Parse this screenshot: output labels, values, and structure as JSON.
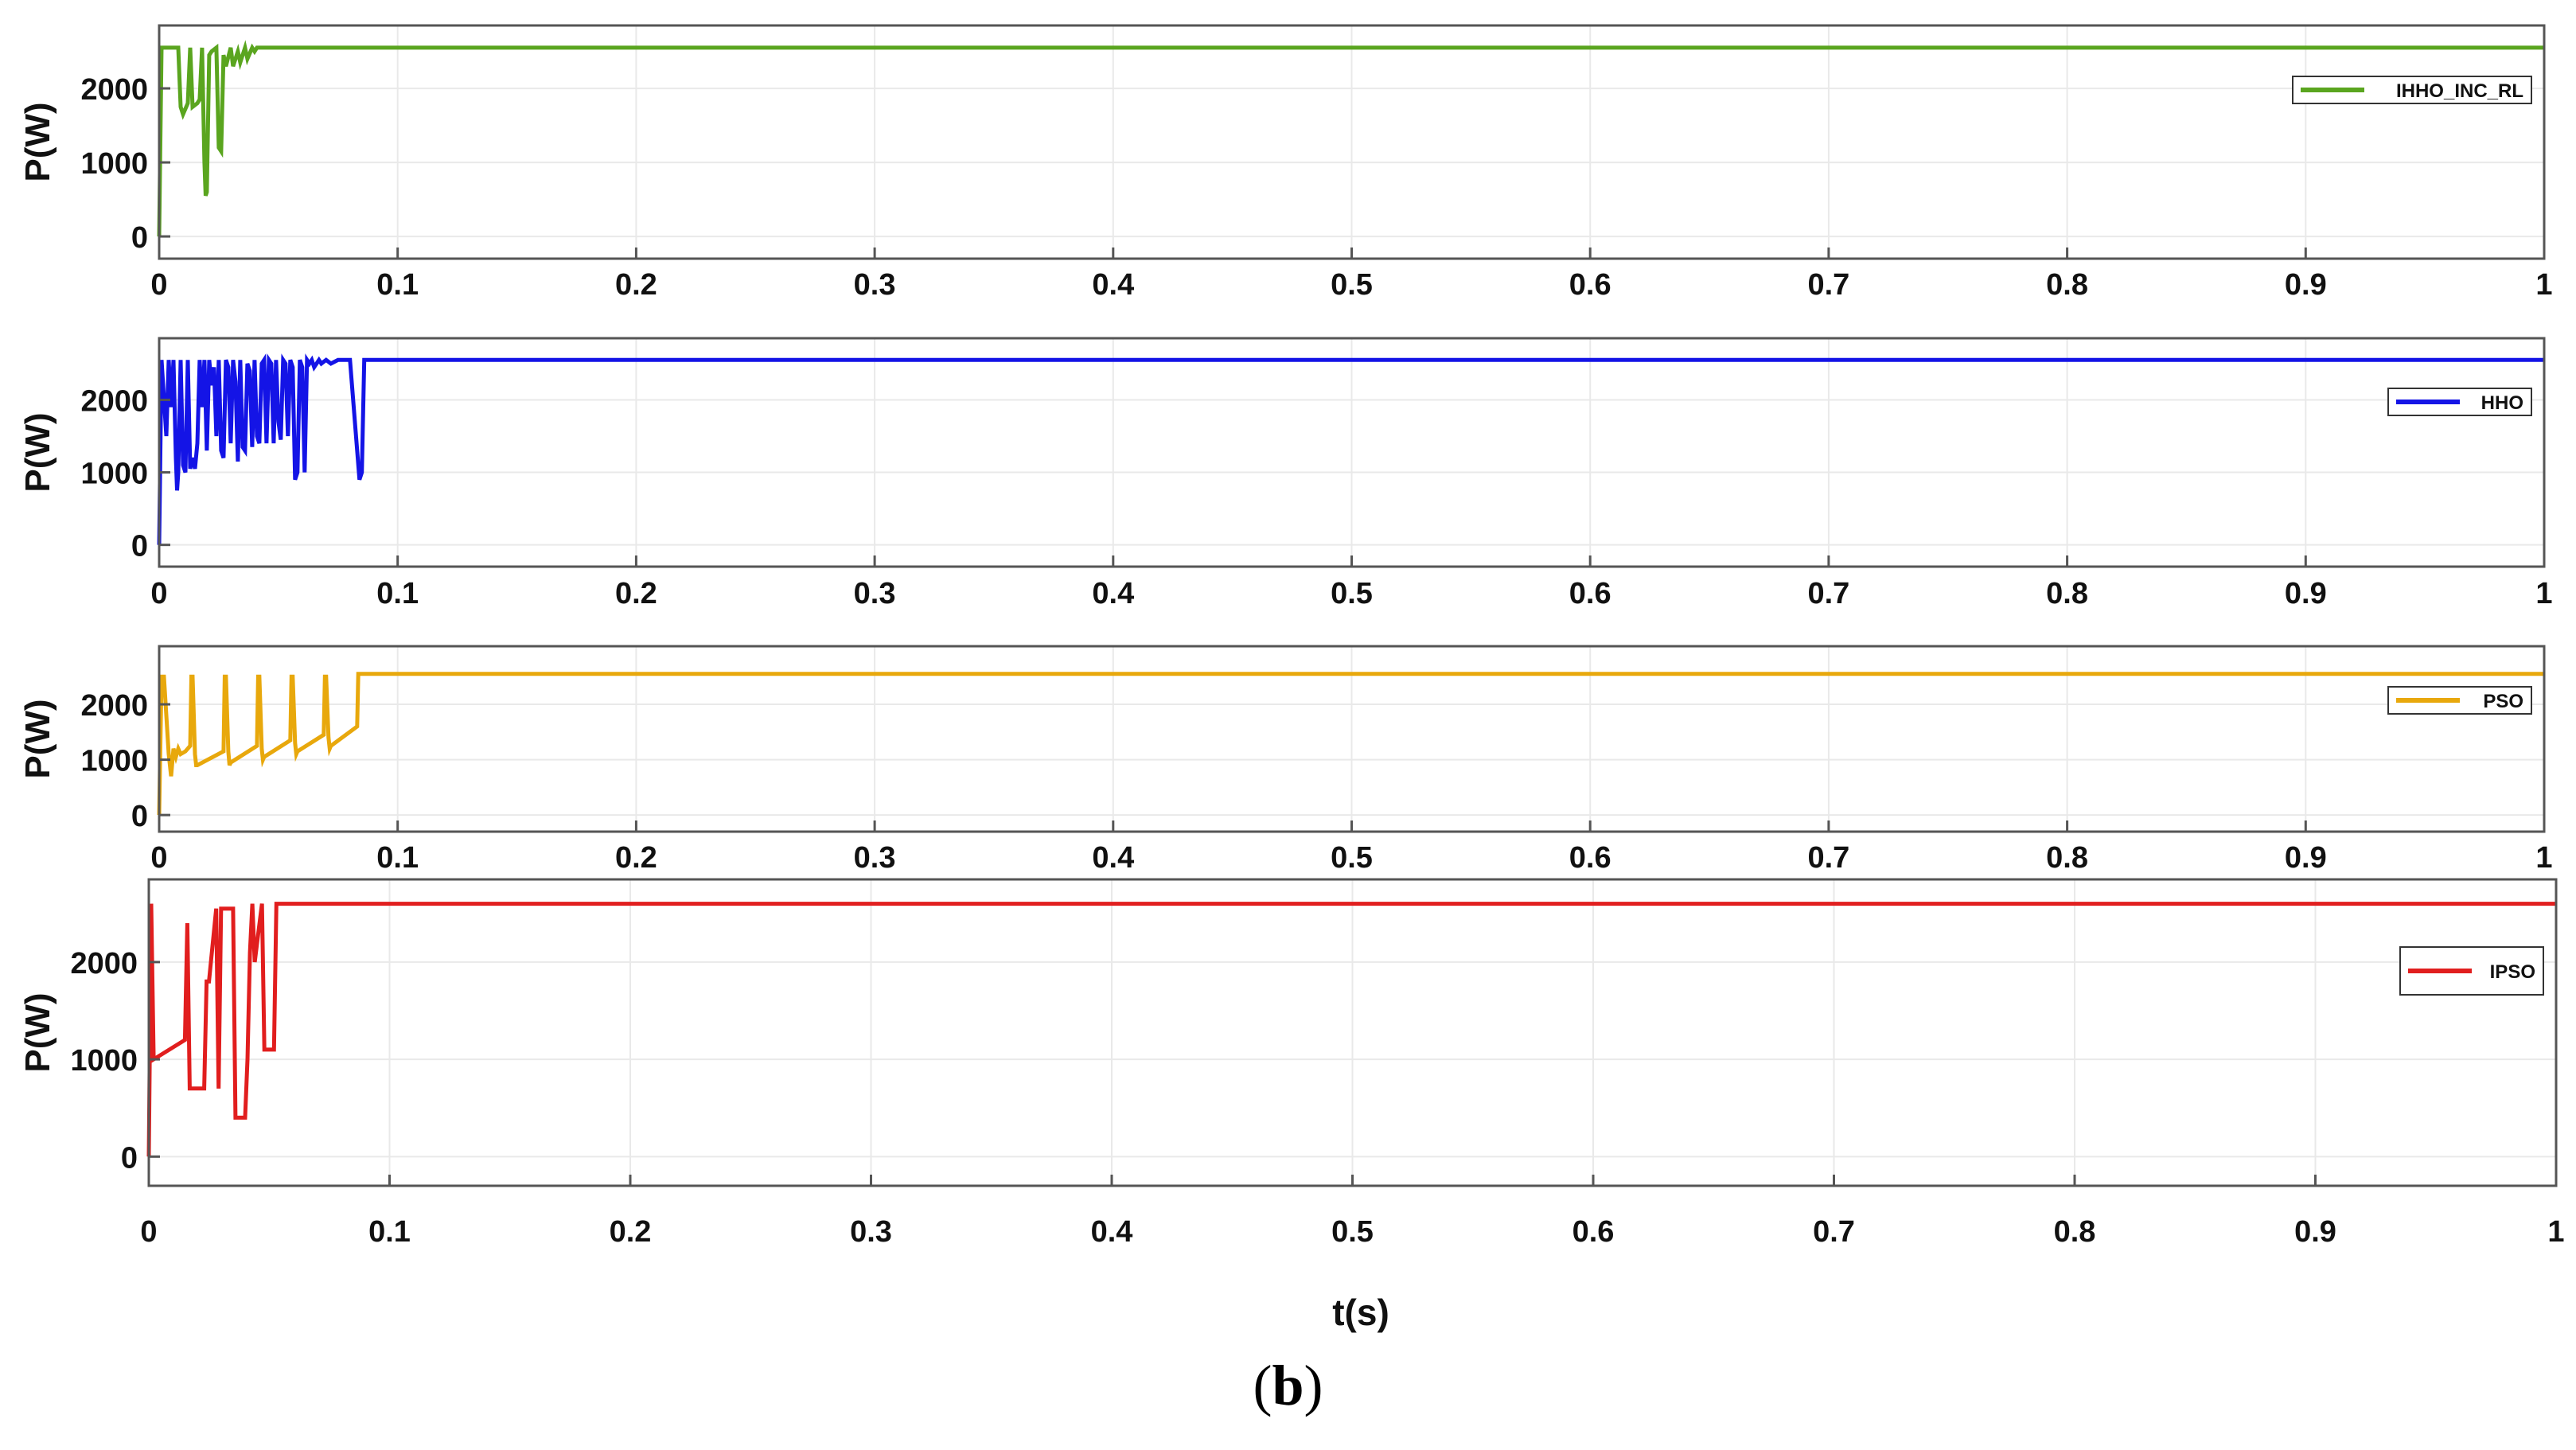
{
  "caption": {
    "open": "(",
    "letter": "b",
    "close": ")"
  },
  "shared_x_label": "t(s)",
  "colors": {
    "axes": "#555555",
    "grid": "#e9e9e9"
  },
  "chart_data": [
    {
      "type": "line",
      "ylabel": "P(W)",
      "xlim": [
        0,
        1
      ],
      "ylim": [
        -300,
        2850
      ],
      "x_ticks": [
        "0",
        "0.1",
        "0.2",
        "0.3",
        "0.4",
        "0.5",
        "0.6",
        "0.7",
        "0.8",
        "0.9",
        "1"
      ],
      "y_ticks": [
        "0",
        "1000",
        "2000"
      ],
      "legend": "top-right",
      "grid": true,
      "series": [
        {
          "name": "IHHO_INC_RL",
          "color": "#5aa51f",
          "x": [
            0,
            0.001,
            0.002,
            0.008,
            0.009,
            0.01,
            0.012,
            0.013,
            0.014,
            0.016,
            0.017,
            0.018,
            0.019,
            0.0195,
            0.02,
            0.021,
            0.022,
            0.024,
            0.025,
            0.026,
            0.027,
            0.028,
            0.03,
            0.031,
            0.033,
            0.034,
            0.036,
            0.037,
            0.039,
            0.04,
            0.041,
            0.045,
            1
          ],
          "y": [
            0,
            2550,
            2550,
            2550,
            1750,
            1650,
            1800,
            2550,
            1750,
            1800,
            1850,
            2550,
            1000,
            550,
            600,
            2450,
            2500,
            2550,
            1200,
            1150,
            2450,
            2300,
            2550,
            2300,
            2500,
            2350,
            2550,
            2400,
            2550,
            2500,
            2550,
            2550,
            2550
          ]
        }
      ]
    },
    {
      "type": "line",
      "ylabel": "P(W)",
      "xlim": [
        0,
        1
      ],
      "ylim": [
        -300,
        2850
      ],
      "x_ticks": [
        "0",
        "0.1",
        "0.2",
        "0.3",
        "0.4",
        "0.5",
        "0.6",
        "0.7",
        "0.8",
        "0.9",
        "1"
      ],
      "y_ticks": [
        "0",
        "1000",
        "2000"
      ],
      "legend": "top-right",
      "grid": true,
      "series": [
        {
          "name": "HHO",
          "color": "#1414e6",
          "x": [
            0,
            0.001,
            0.003,
            0.004,
            0.005,
            0.006,
            0.007,
            0.0075,
            0.008,
            0.009,
            0.01,
            0.011,
            0.012,
            0.013,
            0.014,
            0.015,
            0.016,
            0.017,
            0.018,
            0.019,
            0.02,
            0.021,
            0.022,
            0.023,
            0.024,
            0.025,
            0.026,
            0.027,
            0.028,
            0.029,
            0.03,
            0.031,
            0.032,
            0.033,
            0.034,
            0.035,
            0.036,
            0.037,
            0.038,
            0.039,
            0.04,
            0.041,
            0.042,
            0.043,
            0.044,
            0.045,
            0.046,
            0.047,
            0.048,
            0.049,
            0.05,
            0.051,
            0.052,
            0.053,
            0.054,
            0.055,
            0.056,
            0.057,
            0.058,
            0.059,
            0.06,
            0.061,
            0.062,
            0.063,
            0.064,
            0.065,
            0.066,
            0.067,
            0.068,
            0.07,
            0.072,
            0.075,
            0.08,
            0.084,
            0.085,
            0.086,
            0.087,
            0.088,
            1
          ],
          "y": [
            0,
            2550,
            1500,
            2550,
            1900,
            2550,
            1200,
            750,
            1000,
            2550,
            1100,
            1000,
            2550,
            1050,
            1200,
            1050,
            1400,
            2550,
            1900,
            2550,
            1300,
            2550,
            2200,
            2450,
            1500,
            2550,
            1300,
            1200,
            2550,
            2450,
            1400,
            2550,
            2250,
            1150,
            2550,
            1350,
            1300,
            2500,
            2400,
            1350,
            2550,
            1500,
            1400,
            2500,
            2550,
            1400,
            2550,
            2500,
            1400,
            2550,
            1700,
            1450,
            2550,
            2500,
            1500,
            2550,
            2450,
            900,
            1000,
            2550,
            2450,
            1000,
            2550,
            2500,
            2550,
            2450,
            2500,
            2550,
            2500,
            2550,
            2500,
            2550,
            2550,
            900,
            1000,
            2550,
            2550,
            2550,
            2550
          ]
        }
      ]
    },
    {
      "type": "line",
      "ylabel": "P(W)",
      "xlim": [
        0,
        1
      ],
      "ylim": [
        -300,
        3050
      ],
      "x_ticks": [
        "0",
        "0.1",
        "0.2",
        "0.3",
        "0.4",
        "0.5",
        "0.6",
        "0.7",
        "0.8",
        "0.9",
        "1"
      ],
      "y_ticks": [
        "0",
        "1000",
        "2000"
      ],
      "legend": "top-right",
      "grid": true,
      "series": [
        {
          "name": "PSO",
          "color": "#e8a80c",
          "x": [
            0,
            0.001,
            0.002,
            0.004,
            0.005,
            0.006,
            0.007,
            0.008,
            0.009,
            0.011,
            0.013,
            0.0135,
            0.014,
            0.015,
            0.0155,
            0.016,
            0.027,
            0.0275,
            0.028,
            0.029,
            0.0295,
            0.03,
            0.041,
            0.0415,
            0.042,
            0.043,
            0.0435,
            0.044,
            0.055,
            0.0555,
            0.056,
            0.057,
            0.0575,
            0.058,
            0.069,
            0.0695,
            0.07,
            0.071,
            0.0715,
            0.072,
            0.083,
            0.0835,
            0.084,
            0.085,
            1
          ],
          "y": [
            0,
            2500,
            2500,
            1100,
            700,
            1200,
            1050,
            1200,
            1100,
            1150,
            1250,
            2500,
            2500,
            1100,
            900,
            900,
            1150,
            2500,
            2500,
            1150,
            900,
            950,
            1250,
            2500,
            2500,
            1200,
            1000,
            1050,
            1350,
            2500,
            2500,
            1300,
            1100,
            1150,
            1450,
            2500,
            2500,
            1400,
            1200,
            1250,
            1600,
            2550,
            2550,
            2550,
            2550
          ]
        }
      ]
    },
    {
      "type": "line",
      "ylabel": "P(W)",
      "xlim": [
        0,
        1
      ],
      "ylim": [
        -300,
        2850
      ],
      "x_ticks": [
        "0",
        "0.1",
        "0.2",
        "0.3",
        "0.4",
        "0.5",
        "0.6",
        "0.7",
        "0.8",
        "0.9",
        "1"
      ],
      "y_ticks": [
        "0",
        "1000",
        "2000"
      ],
      "legend": "top-right",
      "grid": true,
      "series": [
        {
          "name": "IPSO",
          "color": "#e11e1e",
          "x": [
            0,
            0.001,
            0.002,
            0.015,
            0.016,
            0.017,
            0.023,
            0.024,
            0.025,
            0.028,
            0.029,
            0.03,
            0.035,
            0.036,
            0.037,
            0.04,
            0.041,
            0.042,
            0.043,
            0.044,
            0.045,
            0.047,
            0.048,
            0.049,
            0.05,
            0.052,
            0.053,
            0.054,
            0.055,
            1
          ],
          "y": [
            0,
            2600,
            1000,
            1200,
            2400,
            700,
            700,
            1800,
            1800,
            2550,
            700,
            2550,
            2550,
            400,
            400,
            400,
            1000,
            2100,
            2600,
            2000,
            2200,
            2600,
            1100,
            1100,
            1100,
            1100,
            2600,
            2600,
            2600,
            2600
          ]
        }
      ]
    }
  ]
}
